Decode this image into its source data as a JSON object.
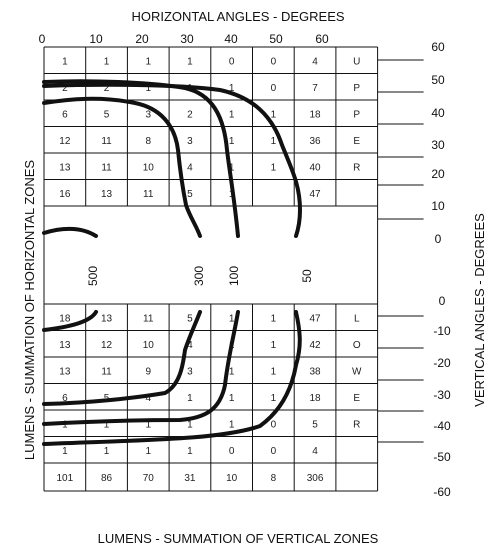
{
  "titles": {
    "top": "HORIZONTAL ANGLES - DEGREES",
    "bottom": "LUMENS - SUMMATION OF VERTICAL ZONES",
    "left": "LUMENS - SUMMATION OF HORIZONTAL ZONES",
    "right": "VERTICAL ANGLES - DEGREES"
  },
  "top_ticks": [
    "0",
    "10",
    "20",
    "30",
    "40",
    "50",
    "60"
  ],
  "right_ticks_upper": [
    "60",
    "50",
    "40",
    "30",
    "20",
    "10",
    "0"
  ],
  "right_ticks_lower": [
    "0",
    "-10",
    "-20",
    "-30",
    "-40",
    "-50",
    "-60"
  ],
  "upper_rows": [
    [
      "1",
      "1",
      "1",
      "1",
      "0",
      "0",
      "4",
      "U"
    ],
    [
      "2",
      "2",
      "1",
      "1",
      "1",
      "0",
      "7",
      "P"
    ],
    [
      "6",
      "5",
      "3",
      "2",
      "1",
      "1",
      "18",
      "P"
    ],
    [
      "12",
      "11",
      "8",
      "3",
      "1",
      "1",
      "36",
      "E"
    ],
    [
      "13",
      "11",
      "10",
      "4",
      "1",
      "1",
      "40",
      "R"
    ],
    [
      "16",
      "13",
      "11",
      "5",
      "1",
      "",
      "47",
      ""
    ]
  ],
  "lower_rows": [
    [
      "18",
      "13",
      "11",
      "5",
      "1",
      "1",
      "47",
      "L"
    ],
    [
      "13",
      "12",
      "10",
      "4",
      "1",
      "1",
      "42",
      "O"
    ],
    [
      "13",
      "11",
      "9",
      "3",
      "1",
      "1",
      "38",
      "W"
    ],
    [
      "6",
      "5",
      "4",
      "1",
      "1",
      "1",
      "18",
      "E"
    ],
    [
      "1",
      "1",
      "1",
      "1",
      "1",
      "0",
      "5",
      "R"
    ],
    [
      "1",
      "1",
      "1",
      "1",
      "0",
      "0",
      "4",
      ""
    ]
  ],
  "totals_row": [
    "101",
    "86",
    "70",
    "31",
    "10",
    "8",
    "306",
    ""
  ],
  "contour_labels": [
    "500",
    "300",
    "100",
    "50"
  ]
}
